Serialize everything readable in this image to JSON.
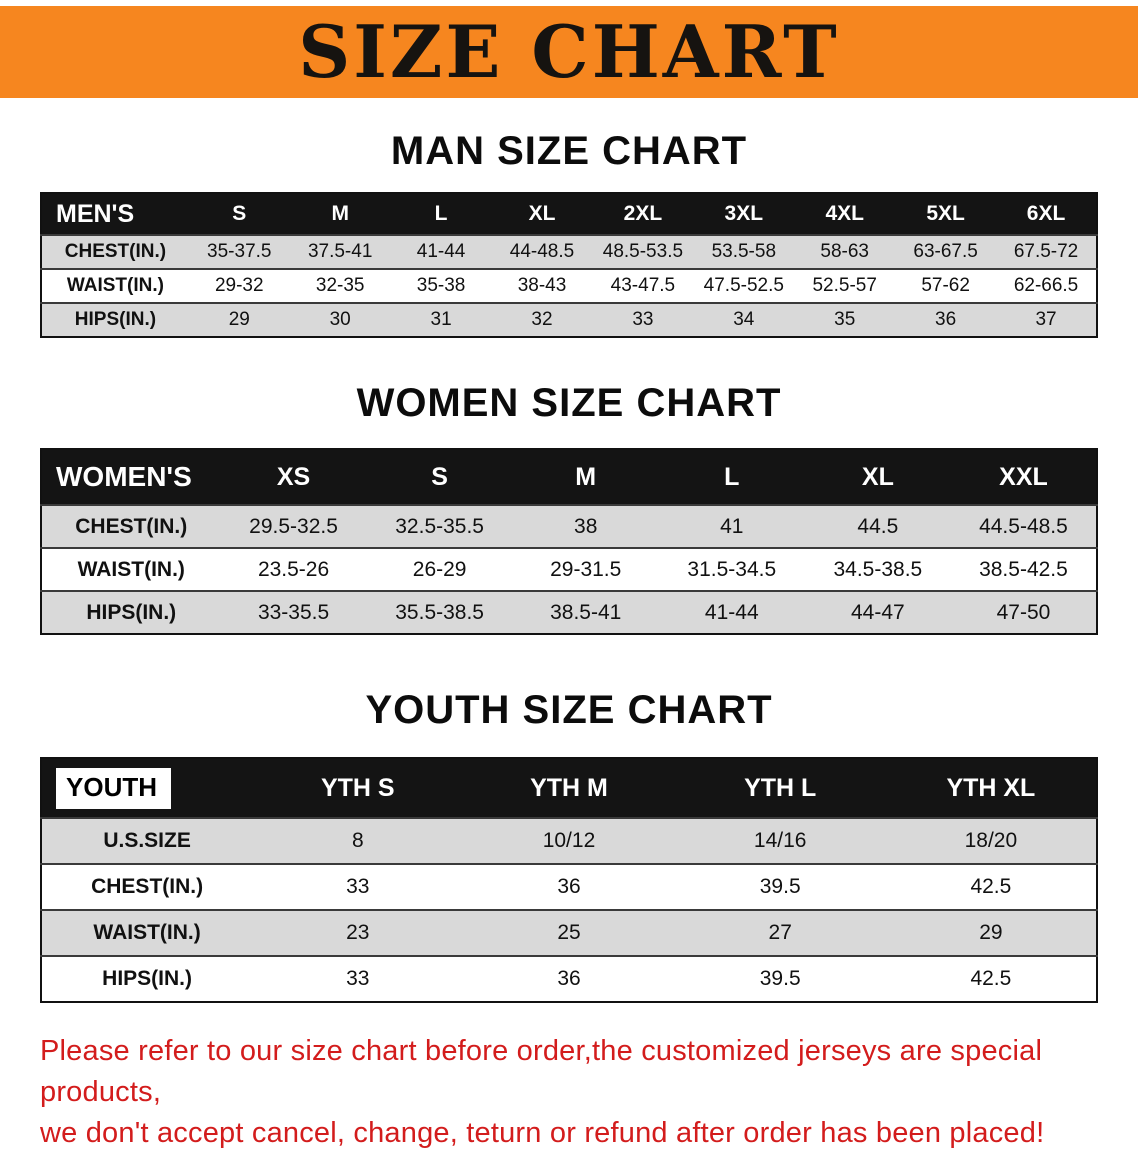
{
  "banner": {
    "title": "SIZE CHART",
    "bg_color": "#f6861f"
  },
  "headings": {
    "man": "MAN SIZE CHART",
    "women": "WOMEN SIZE CHART",
    "youth": "YOUTH SIZE CHART"
  },
  "tables": {
    "men": {
      "header": [
        "MEN'S",
        "S",
        "M",
        "L",
        "XL",
        "2XL",
        "3XL",
        "4XL",
        "5XL",
        "6XL"
      ],
      "rows": [
        [
          "CHEST(IN.)",
          "35-37.5",
          "37.5-41",
          "41-44",
          "44-48.5",
          "48.5-53.5",
          "53.5-58",
          "58-63",
          "63-67.5",
          "67.5-72"
        ],
        [
          "WAIST(IN.)",
          "29-32",
          "32-35",
          "35-38",
          "38-43",
          "43-47.5",
          "47.5-52.5",
          "52.5-57",
          "57-62",
          "62-66.5"
        ],
        [
          "HIPS(IN.)",
          "29",
          "30",
          "31",
          "32",
          "33",
          "34",
          "35",
          "36",
          "37"
        ]
      ]
    },
    "women": {
      "header": [
        "WOMEN'S",
        "XS",
        "S",
        "M",
        "L",
        "XL",
        "XXL"
      ],
      "rows": [
        [
          "CHEST(IN.)",
          "29.5-32.5",
          "32.5-35.5",
          "38",
          "41",
          "44.5",
          "44.5-48.5"
        ],
        [
          "WAIST(IN.)",
          "23.5-26",
          "26-29",
          "29-31.5",
          "31.5-34.5",
          "34.5-38.5",
          "38.5-42.5"
        ],
        [
          "HIPS(IN.)",
          "33-35.5",
          "35.5-38.5",
          "38.5-41",
          "41-44",
          "44-47",
          "47-50"
        ]
      ]
    },
    "youth": {
      "header": [
        "YOUTH",
        "YTH S",
        "YTH M",
        "YTH L",
        "YTH XL"
      ],
      "rows": [
        [
          "U.S.SIZE",
          "8",
          "10/12",
          "14/16",
          "18/20"
        ],
        [
          "CHEST(IN.)",
          "33",
          "36",
          "39.5",
          "42.5"
        ],
        [
          "WAIST(IN.)",
          "23",
          "25",
          "27",
          "29"
        ],
        [
          "HIPS(IN.)",
          "33",
          "36",
          "39.5",
          "42.5"
        ]
      ]
    }
  },
  "footer": {
    "line1": "Please refer to our size chart before order,the customized jerseys are special products,",
    "line2": "we don't accept cancel, change, teturn or refund after order has been placed!",
    "text_color": "#d31c1c"
  }
}
